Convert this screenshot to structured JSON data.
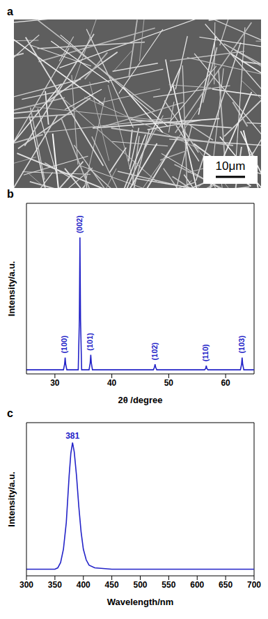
{
  "image": {
    "title": "a",
    "scale_bar": "10μm"
  },
  "chart_data": [
    {
      "type": "line",
      "title": "b",
      "x_label": "2θ /degree",
      "y_label": "Intensity/a.u.",
      "color": "#2323c8",
      "xlim": [
        25,
        65
      ],
      "xticks": [
        30,
        40,
        50,
        60
      ],
      "ylim": [
        0,
        1.25
      ],
      "tick_labels": "x",
      "x": [
        25,
        31.5,
        31.7,
        31.8,
        31.9,
        32.1,
        34.1,
        34.3,
        34.4,
        34.5,
        34.7,
        36.0,
        36.2,
        36.3,
        36.4,
        36.6,
        47.3,
        47.5,
        47.6,
        47.7,
        47.9,
        56.3,
        56.5,
        56.6,
        56.7,
        56.9,
        62.6,
        62.8,
        62.9,
        63.0,
        63.2,
        65
      ],
      "values": [
        0.03,
        0.03,
        0.07,
        0.12,
        0.07,
        0.03,
        0.03,
        0.4,
        1.0,
        0.4,
        0.03,
        0.03,
        0.08,
        0.14,
        0.08,
        0.03,
        0.03,
        0.05,
        0.07,
        0.05,
        0.03,
        0.03,
        0.04,
        0.06,
        0.04,
        0.03,
        0.03,
        0.07,
        0.12,
        0.07,
        0.03,
        0.03
      ],
      "annotations": [
        {
          "text": "(100)",
          "x": 31.8,
          "y": 0.15
        },
        {
          "text": "(002)",
          "x": 34.4,
          "y": 1.03
        },
        {
          "text": "(101)",
          "x": 36.3,
          "y": 0.17
        },
        {
          "text": "(102)",
          "x": 47.6,
          "y": 0.1
        },
        {
          "text": "(110)",
          "x": 56.6,
          "y": 0.09
        },
        {
          "text": "(103)",
          "x": 62.9,
          "y": 0.15
        }
      ]
    },
    {
      "type": "line",
      "title": "c",
      "x_label": "Wavelength/nm",
      "y_label": "Intensity/a.u.",
      "color": "#2323c8",
      "xlim": [
        300,
        700
      ],
      "xticks": [
        300,
        350,
        400,
        450,
        500,
        550,
        600,
        650,
        700
      ],
      "ylim": [
        0,
        1.15
      ],
      "tick_labels": "x",
      "x": [
        300,
        350,
        355,
        360,
        365,
        370,
        375,
        378,
        381,
        384,
        388,
        392,
        396,
        400,
        405,
        410,
        420,
        450,
        700
      ],
      "values": [
        0.05,
        0.05,
        0.06,
        0.1,
        0.2,
        0.4,
        0.75,
        0.92,
        1.0,
        0.93,
        0.75,
        0.52,
        0.33,
        0.2,
        0.12,
        0.08,
        0.06,
        0.05,
        0.05
      ],
      "annotations": [
        {
          "text": "381",
          "x": 381,
          "y": 1.03
        }
      ]
    }
  ]
}
